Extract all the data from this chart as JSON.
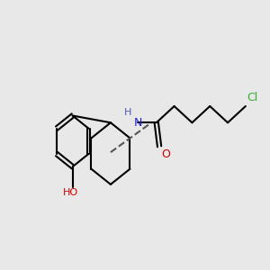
{
  "bg_color": "#e8e8e8",
  "bond_color": "#000000",
  "bond_width": 1.5,
  "figsize": [
    3.0,
    3.0
  ],
  "dpi": 100,
  "xlim": [
    -0.5,
    8.5
  ],
  "ylim": [
    1.0,
    7.5
  ]
}
